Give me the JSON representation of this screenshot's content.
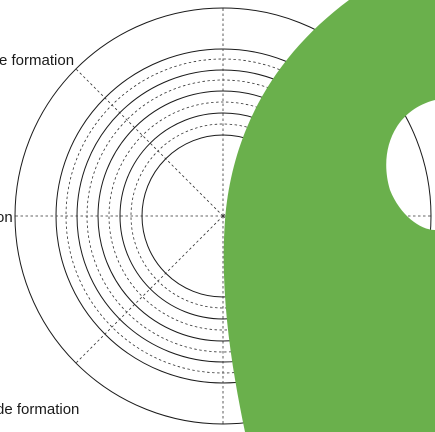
{
  "chart_data": {
    "type": "radar",
    "title": "",
    "ring_levels": 5,
    "radial_spokes": 8,
    "grid_lines": "dashed",
    "axis_labels": [
      "e formation",
      "on",
      "de formation"
    ],
    "colors": {
      "ring": "#1a1a1a",
      "grid": "#333333",
      "overlay": "#6ab04c",
      "background": "#ffffff"
    }
  }
}
